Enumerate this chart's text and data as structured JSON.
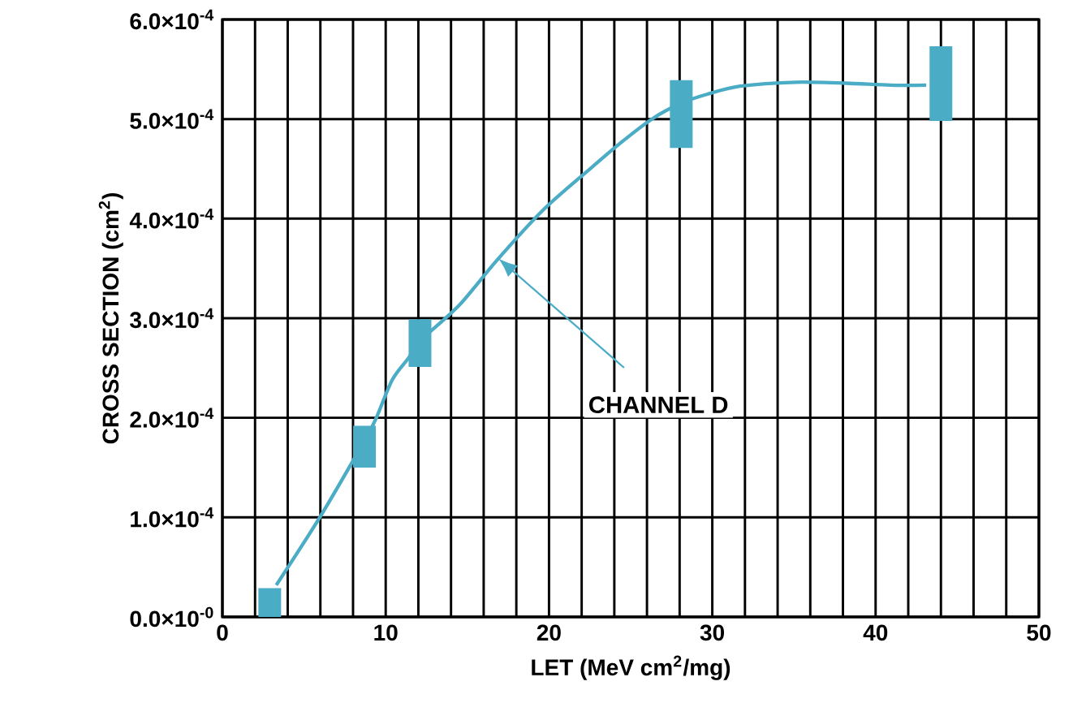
{
  "chart_data": {
    "type": "bar",
    "xlabel": "LET (MeV cm$^{2}$/mg)",
    "ylabel": "CROSS SECTION (cm$^{2}$)",
    "xlim": [
      0,
      50
    ],
    "ylim": [
      0,
      0.0006
    ],
    "xticks": [
      0,
      {
        "value": 2,
        "label": null
      },
      {
        "value": 4,
        "label": null
      },
      {
        "value": 6,
        "label": null
      },
      {
        "value": 8,
        "label": null
      },
      10,
      {
        "value": 12,
        "label": null
      },
      {
        "value": 14,
        "label": null
      },
      {
        "value": 16,
        "label": null
      },
      {
        "value": 18,
        "label": null
      },
      20,
      {
        "value": 22,
        "label": null
      },
      {
        "value": 24,
        "label": null
      },
      {
        "value": 26,
        "label": null
      },
      {
        "value": 28,
        "label": null
      },
      30,
      {
        "value": 32,
        "label": null
      },
      {
        "value": 34,
        "label": null
      },
      {
        "value": 36,
        "label": null
      },
      {
        "value": 38,
        "label": null
      },
      40,
      {
        "value": 42,
        "label": null
      },
      {
        "value": 44,
        "label": null
      },
      {
        "value": 46,
        "label": null
      },
      {
        "value": 48,
        "label": null
      },
      50
    ],
    "yticks": [
      {
        "value": 0,
        "label": "0.0×10$^{-0}$"
      },
      {
        "value": 0.0001,
        "label": "1.0×10$^{-4}$"
      },
      {
        "value": 0.0002,
        "label": "2.0×10$^{-4}$"
      },
      {
        "value": 0.0003,
        "label": "3.0×10$^{-4}$"
      },
      {
        "value": 0.0004,
        "label": "4.0×10$^{-4}$"
      },
      {
        "value": 0.0005,
        "label": "5.0×10$^{-4}$"
      },
      {
        "value": 0.0006,
        "label": "6.0×10$^{-4}$"
      }
    ],
    "grid": true,
    "series": [
      {
        "color": "#4bacc6",
        "x": [
          2.9,
          8.7,
          12.1,
          28.1,
          44.0
        ],
        "base": [
          0,
          0.00015,
          0.000251,
          0.000471,
          0.000498
        ],
        "values": [
          2.9e-05,
          4.2e-05,
          4.8e-05,
          6.8e-05,
          7.5e-05
        ]
      },
      {
        "type": "line",
        "color": "#4bacc6",
        "x": [
          3.3,
          6.0,
          8.7,
          9.4,
          10.4,
          11.4,
          12.1,
          14.5,
          16.8,
          19.6,
          22.3,
          24.3,
          26.3,
          28.1,
          29.7,
          31.7,
          35.1,
          38.2,
          40.9,
          43.1
        ],
        "values": [
          3.2e-05,
          0.000101,
          0.000177,
          0.000199,
          0.000238,
          0.00026,
          0.000277,
          0.000313,
          0.000358,
          0.000408,
          0.000447,
          0.000475,
          0.0005,
          0.000516,
          0.000525,
          0.000533,
          0.000537,
          0.000536,
          0.000534,
          0.000534
        ]
      }
    ],
    "annotations": [
      "CHANNEL D"
    ]
  }
}
